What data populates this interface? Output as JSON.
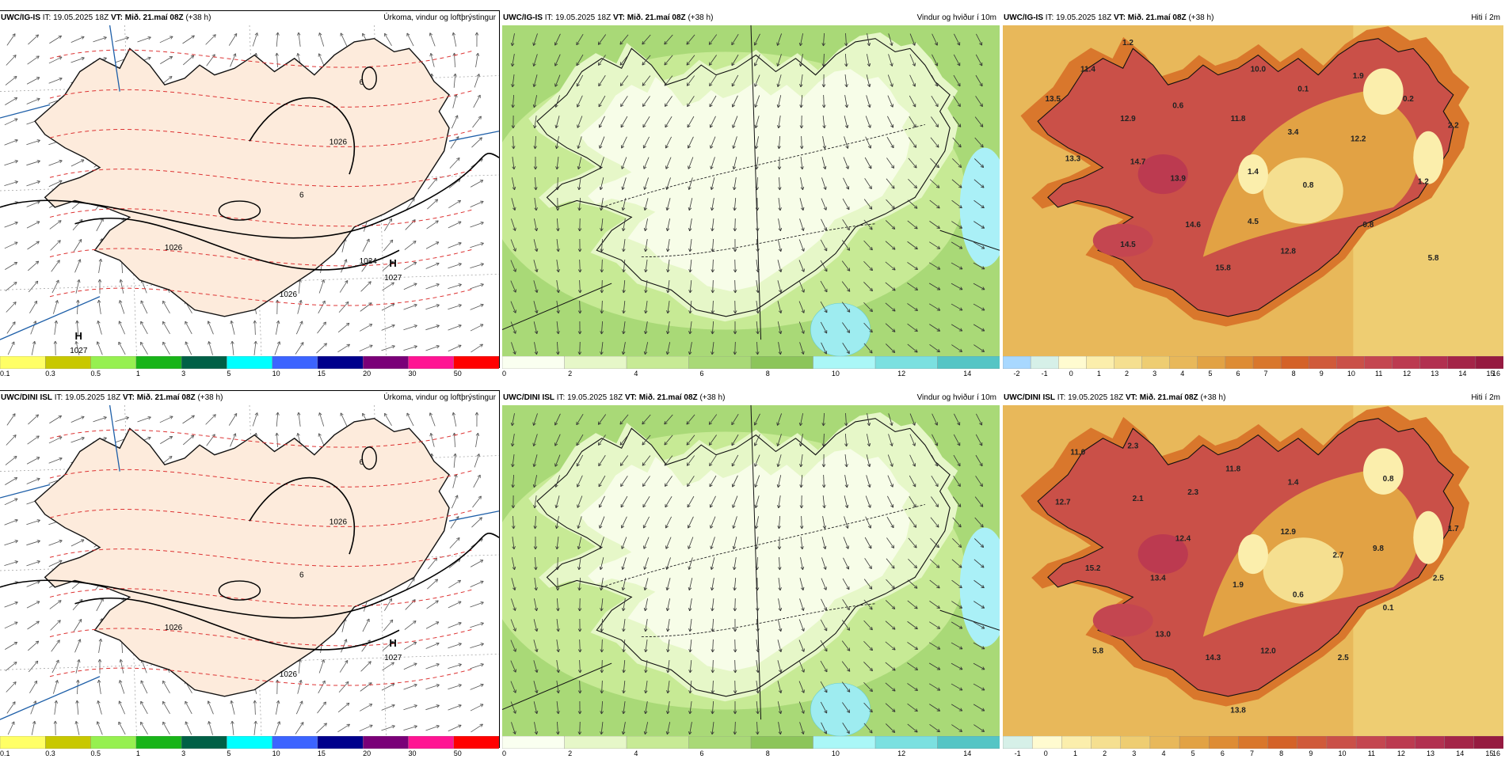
{
  "panels": [
    {
      "model": "UWC/IG-IS",
      "it": "IT: 19.05.2025 18Z",
      "vt": "VT: Mið. 21.maí 08Z",
      "lead": "(+38 h)",
      "title": "Úrkoma, vindur og loftþrýstingur",
      "kind": "precip",
      "legend": "precip"
    },
    {
      "model": "UWC/IG-IS",
      "it": "IT: 19.05.2025 18Z",
      "vt": "VT: Mið. 21.maí 08Z",
      "lead": "(+38 h)",
      "title": "Vindur og hviður í 10m",
      "kind": "wind",
      "legend": "wind"
    },
    {
      "model": "UWC/IG-IS",
      "it": "IT: 19.05.2025 18Z",
      "vt": "VT: Mið. 21.maí 08Z",
      "lead": "(+38 h)",
      "title": "Hiti í 2m",
      "kind": "temp",
      "legend": "temp1",
      "values": [
        [
          "1.2",
          0.25,
          0.06
        ],
        [
          "11.4",
          0.17,
          0.14
        ],
        [
          "10.0",
          0.51,
          0.14
        ],
        [
          "0.1",
          0.6,
          0.2
        ],
        [
          "1.9",
          0.71,
          0.16
        ],
        [
          "13.5",
          0.1,
          0.23
        ],
        [
          "0.6",
          0.35,
          0.25
        ],
        [
          "0.2",
          0.81,
          0.23
        ],
        [
          "12.9",
          0.25,
          0.29
        ],
        [
          "11.8",
          0.47,
          0.29
        ],
        [
          "3.4",
          0.58,
          0.33
        ],
        [
          "12.2",
          0.71,
          0.35
        ],
        [
          "2.2",
          0.9,
          0.31
        ],
        [
          "13.3",
          0.14,
          0.41
        ],
        [
          "14.7",
          0.27,
          0.42
        ],
        [
          "1.4",
          0.5,
          0.45
        ],
        [
          "13.9",
          0.35,
          0.47
        ],
        [
          "0.8",
          0.61,
          0.49
        ],
        [
          "1.2",
          0.84,
          0.48
        ],
        [
          "14.6",
          0.38,
          0.61
        ],
        [
          "4.5",
          0.5,
          0.6
        ],
        [
          "0.8",
          0.73,
          0.61
        ],
        [
          "14.5",
          0.25,
          0.67
        ],
        [
          "12.8",
          0.57,
          0.69
        ],
        [
          "5.8",
          0.86,
          0.71
        ],
        [
          "15.8",
          0.44,
          0.74
        ]
      ]
    },
    {
      "model": "UWC/DINI ISL",
      "it": "IT: 19.05.2025 18Z",
      "vt": "VT: Mið. 21.maí 08Z",
      "lead": "(+38 h)",
      "title": "Úrkoma, vindur og loftþrýstingur",
      "kind": "precip",
      "legend": "precip"
    },
    {
      "model": "UWC/DINI ISL",
      "it": "IT: 19.05.2025 18Z",
      "vt": "VT: Mið. 21.maí 08Z",
      "lead": "(+38 h)",
      "title": "Vindur og hviður í 10m",
      "kind": "wind",
      "legend": "wind"
    },
    {
      "model": "UWC/DINI ISL",
      "it": "IT: 19.05.2025 18Z",
      "vt": "VT: Mið. 21.maí 08Z",
      "lead": "(+38 h)",
      "title": "Hiti í 2m",
      "kind": "temp",
      "legend": "temp2",
      "values": [
        [
          "11.0",
          0.15,
          0.15
        ],
        [
          "2.3",
          0.26,
          0.13
        ],
        [
          "11.8",
          0.46,
          0.2
        ],
        [
          "1.4",
          0.58,
          0.24
        ],
        [
          "0.8",
          0.77,
          0.23
        ],
        [
          "12.7",
          0.12,
          0.3
        ],
        [
          "2.1",
          0.27,
          0.29
        ],
        [
          "2.3",
          0.38,
          0.27
        ],
        [
          "12.9",
          0.57,
          0.39
        ],
        [
          "1.7",
          0.9,
          0.38
        ],
        [
          "12.4",
          0.36,
          0.41
        ],
        [
          "2.7",
          0.67,
          0.46
        ],
        [
          "9.8",
          0.75,
          0.44
        ],
        [
          "15.2",
          0.18,
          0.5
        ],
        [
          "13.4",
          0.31,
          0.53
        ],
        [
          "1.9",
          0.47,
          0.55
        ],
        [
          "2.5",
          0.87,
          0.53
        ],
        [
          "0.6",
          0.59,
          0.58
        ],
        [
          "0.1",
          0.77,
          0.62
        ],
        [
          "13.0",
          0.32,
          0.7
        ],
        [
          "14.3",
          0.42,
          0.77
        ],
        [
          "12.0",
          0.53,
          0.75
        ],
        [
          "2.5",
          0.68,
          0.77
        ],
        [
          "5.8",
          0.19,
          0.75
        ],
        [
          "13.8",
          0.47,
          0.93
        ]
      ]
    }
  ],
  "legends": {
    "precip": {
      "labels": [
        "0.1",
        "0.3",
        "0.5",
        "1",
        "3",
        "5",
        "10",
        "15",
        "20",
        "30",
        "50"
      ],
      "colors": [
        "#ffff66",
        "#c8c800",
        "#96f050",
        "#18b418",
        "#006046",
        "#00ffff",
        "#3c64ff",
        "#00008c",
        "#7a0078",
        "#ff1493",
        "#ff0000"
      ]
    },
    "wind": {
      "labels": [
        "0",
        "2",
        "4",
        "6",
        "8",
        "10",
        "12",
        "14"
      ],
      "colors": [
        "#fafff0",
        "#e6f7c8",
        "#c7ea95",
        "#a9d977",
        "#8cc55a",
        "#aaf7f7",
        "#7be0e0",
        "#55c5c5"
      ]
    },
    "temp1": {
      "labels": [
        "-2",
        "-1",
        "0",
        "1",
        "2",
        "3",
        "4",
        "5",
        "6",
        "7",
        "8",
        "9",
        "10",
        "11",
        "12",
        "13",
        "14",
        "15",
        "16"
      ],
      "colors": [
        "#a8d8ff",
        "#d6f0e8",
        "#fffbd0",
        "#fbeeac",
        "#f5df90",
        "#eecd72",
        "#e8b85a",
        "#e2a244",
        "#de8c34",
        "#d9772c",
        "#d46228",
        "#d05a3a",
        "#ca5048",
        "#c44650",
        "#bc3a50",
        "#b23050",
        "#a42448",
        "#961a40"
      ]
    },
    "temp2": {
      "labels": [
        "-1",
        "0",
        "1",
        "2",
        "3",
        "4",
        "5",
        "6",
        "7",
        "8",
        "9",
        "10",
        "11",
        "12",
        "13",
        "14",
        "15",
        "16"
      ],
      "colors": [
        "#d6f0e8",
        "#fffbd0",
        "#fbeeac",
        "#f5df90",
        "#eecd72",
        "#e8b85a",
        "#e2a244",
        "#de8c34",
        "#d9772c",
        "#d46228",
        "#d05a3a",
        "#ca5048",
        "#c44650",
        "#bc3a50",
        "#b23050",
        "#a42448",
        "#961a40"
      ]
    }
  },
  "isobars": {
    "iso1026": "1026",
    "iso1024": "1024",
    "iso6": "6",
    "high": "H",
    "high_val": "1027"
  }
}
